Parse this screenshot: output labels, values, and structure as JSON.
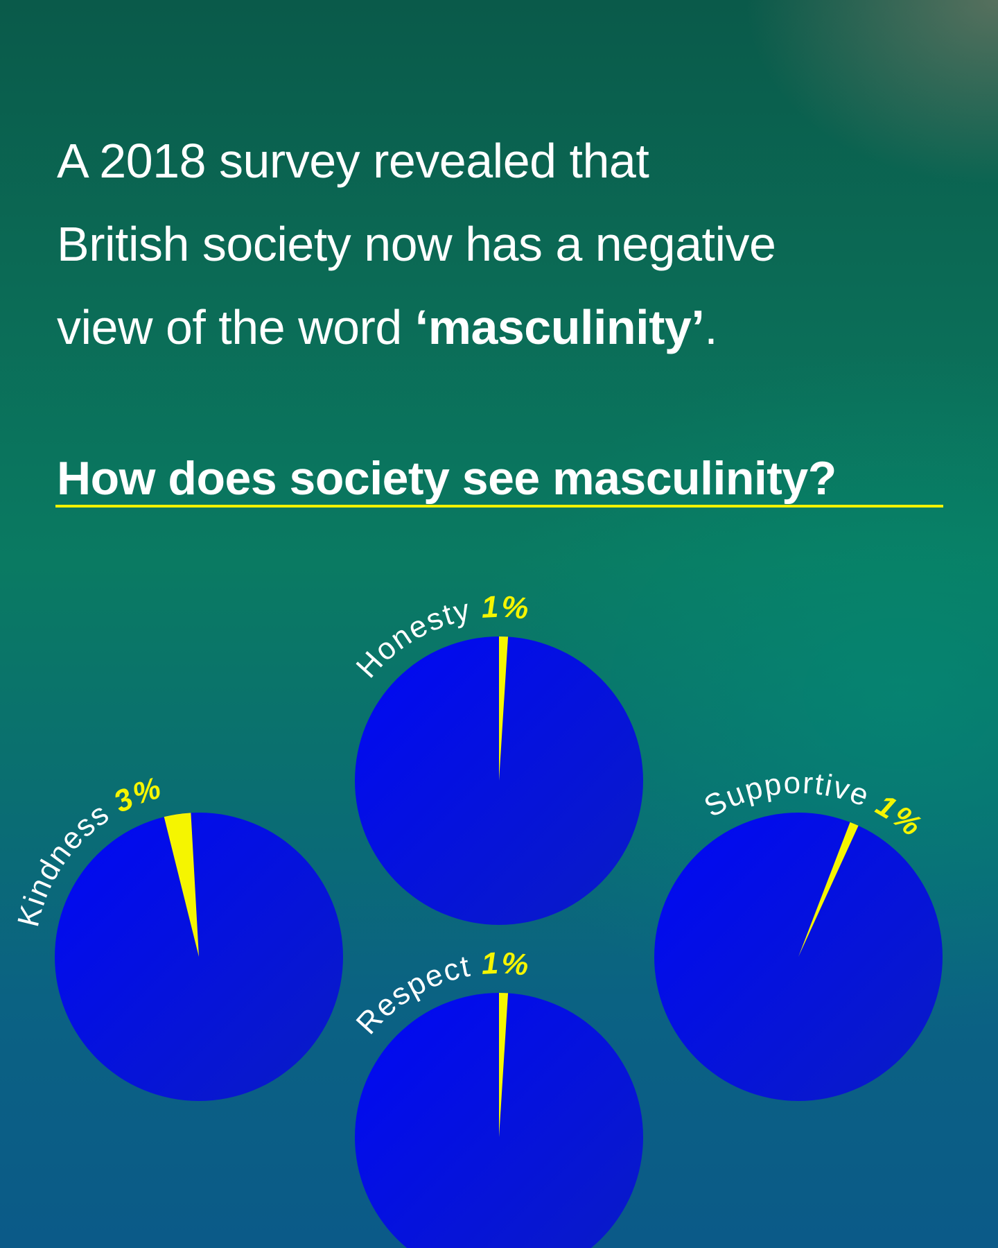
{
  "intro": {
    "line1": "A 2018 survey revealed that",
    "line2": "British society now has a negative",
    "line3_prefix": "view of the word ",
    "line3_emphasis": "‘masculinity’",
    "line3_suffix": "."
  },
  "question": "How does society see masculinity? ",
  "colors": {
    "pie_fill": "#0a12e6",
    "slice": "#f5f500",
    "label_text": "#ffffff",
    "percent_text": "#f5f500",
    "underline": "#f2f200"
  },
  "chart_data": {
    "type": "pie",
    "unit": "%",
    "charts": [
      {
        "name": "Honesty",
        "value": 1
      },
      {
        "name": "Kindness",
        "value": 3
      },
      {
        "name": "Supportive",
        "value": 1
      },
      {
        "name": "Respect",
        "value": 1
      }
    ]
  }
}
